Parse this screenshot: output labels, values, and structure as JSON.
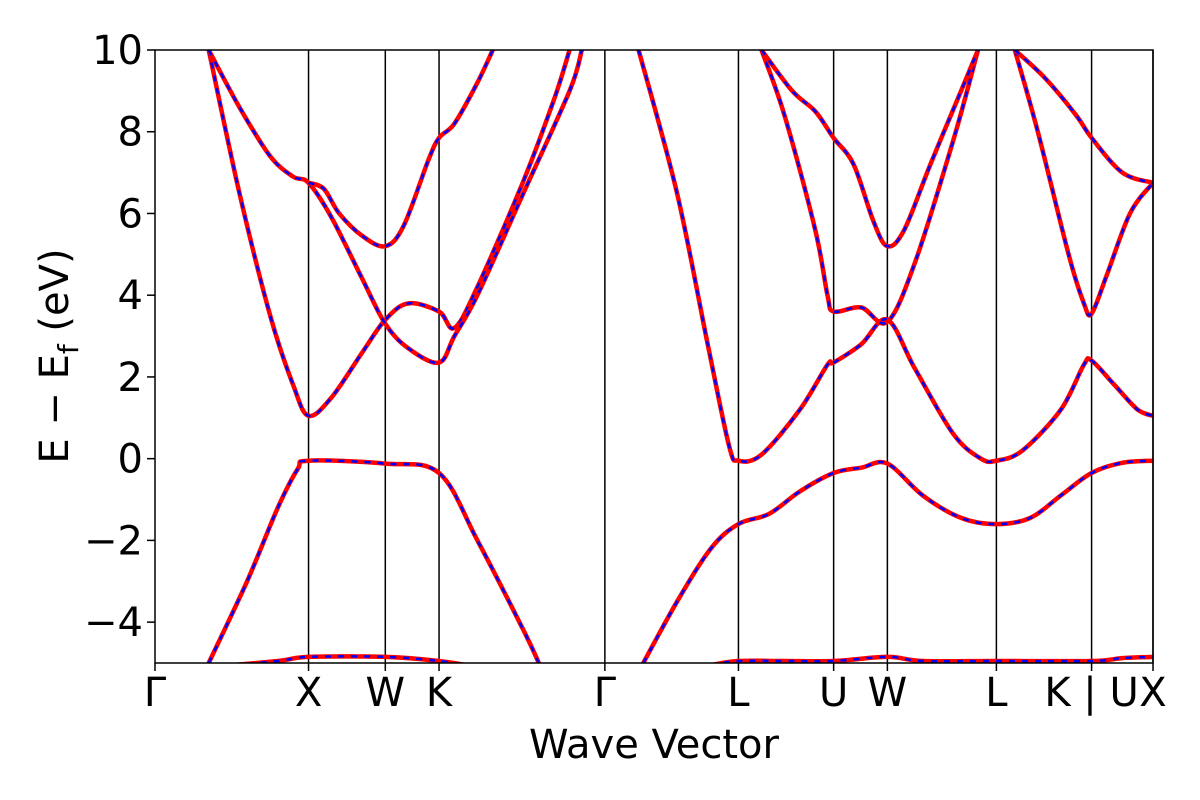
{
  "chart_data": {
    "type": "line",
    "xlabel": "Wave Vector",
    "ylabel": "E − E_f (eV)",
    "ylabel_parts": {
      "main": "E − E",
      "sub": "f",
      "unit": " (eV)"
    },
    "ylim": [
      -5,
      10
    ],
    "y_ticks": [
      -4,
      -2,
      0,
      2,
      4,
      6,
      8,
      10
    ],
    "y_tick_labels": [
      "−4",
      "−2",
      "0",
      "2",
      "4",
      "6",
      "8",
      "10"
    ],
    "x_range": [
      0,
      6.5
    ],
    "kpoints": [
      {
        "label": "Γ",
        "x": 0.0
      },
      {
        "label": "X",
        "x": 1.0
      },
      {
        "label": "W",
        "x": 1.5
      },
      {
        "label": "K",
        "x": 1.85
      },
      {
        "label": "Γ",
        "x": 2.93
      },
      {
        "label": "L",
        "x": 3.8
      },
      {
        "label": "U",
        "x": 4.42
      },
      {
        "label": "W",
        "x": 4.77
      },
      {
        "label": "L",
        "x": 5.48
      },
      {
        "label": "K | U",
        "x": 6.1
      },
      {
        "label": "X",
        "x": 6.5
      }
    ],
    "vlines": [
      1.0,
      1.5,
      1.85,
      2.93,
      3.8,
      4.42,
      4.77,
      5.48,
      6.1,
      6.5
    ],
    "grid": false,
    "series_styles": [
      {
        "role": "solid",
        "color": "#ff0000"
      },
      {
        "role": "dashed",
        "color": "#0000ff"
      }
    ],
    "bands": [
      {
        "points": [
          [
            0.35,
            -5.0
          ],
          [
            0.6,
            -3.0
          ],
          [
            0.8,
            -1.2
          ],
          [
            0.93,
            -0.25
          ],
          [
            1.0,
            -0.05
          ],
          [
            1.5,
            -0.12
          ],
          [
            1.85,
            -0.35
          ],
          [
            2.1,
            -2.0
          ],
          [
            2.4,
            -4.2
          ],
          [
            2.5,
            -5.0
          ]
        ]
      },
      {
        "points": [
          [
            0.35,
            10.0
          ],
          [
            0.55,
            6.5
          ],
          [
            0.75,
            3.5
          ],
          [
            0.9,
            1.8
          ],
          [
            1.0,
            1.05
          ],
          [
            1.15,
            1.5
          ],
          [
            1.35,
            2.6
          ],
          [
            1.5,
            3.4
          ],
          [
            1.65,
            3.8
          ],
          [
            1.85,
            3.6
          ],
          [
            1.95,
            3.2
          ],
          [
            2.1,
            4.2
          ],
          [
            2.4,
            6.8
          ],
          [
            2.6,
            8.8
          ],
          [
            2.7,
            10.0
          ]
        ]
      },
      {
        "points": [
          [
            0.35,
            10.0
          ],
          [
            0.55,
            8.6
          ],
          [
            0.75,
            7.4
          ],
          [
            0.9,
            6.9
          ],
          [
            1.0,
            6.75
          ],
          [
            1.15,
            5.9
          ],
          [
            1.35,
            4.4
          ],
          [
            1.5,
            3.3
          ],
          [
            1.65,
            2.7
          ],
          [
            1.85,
            2.35
          ],
          [
            1.95,
            3.0
          ],
          [
            2.1,
            4.0
          ],
          [
            2.4,
            6.5
          ],
          [
            2.7,
            9.0
          ],
          [
            2.78,
            10.0
          ]
        ]
      },
      {
        "points": [
          [
            1.0,
            6.75
          ],
          [
            1.1,
            6.6
          ],
          [
            1.2,
            6.0
          ],
          [
            1.35,
            5.45
          ],
          [
            1.5,
            5.2
          ],
          [
            1.62,
            5.7
          ],
          [
            1.78,
            7.3
          ],
          [
            1.85,
            7.85
          ],
          [
            1.95,
            8.2
          ],
          [
            2.1,
            9.2
          ],
          [
            2.2,
            10.0
          ]
        ]
      },
      {
        "points": [
          [
            3.18,
            -5.0
          ],
          [
            3.4,
            -3.5
          ],
          [
            3.62,
            -2.2
          ],
          [
            3.8,
            -1.6
          ],
          [
            4.0,
            -1.35
          ],
          [
            4.2,
            -0.8
          ],
          [
            4.42,
            -0.35
          ],
          [
            4.6,
            -0.22
          ],
          [
            4.77,
            -0.12
          ],
          [
            5.0,
            -0.9
          ],
          [
            5.25,
            -1.45
          ],
          [
            5.48,
            -1.6
          ],
          [
            5.7,
            -1.45
          ],
          [
            5.9,
            -0.9
          ],
          [
            6.1,
            -0.35
          ],
          [
            6.3,
            -0.1
          ],
          [
            6.5,
            -0.05
          ]
        ]
      },
      {
        "points": [
          [
            3.15,
            10.0
          ],
          [
            3.4,
            6.5
          ],
          [
            3.6,
            2.8
          ],
          [
            3.74,
            0.3
          ],
          [
            3.8,
            -0.05
          ],
          [
            3.95,
            0.1
          ],
          [
            4.2,
            1.2
          ],
          [
            4.38,
            2.3
          ],
          [
            4.42,
            2.35
          ],
          [
            4.6,
            2.8
          ],
          [
            4.77,
            3.4
          ],
          [
            4.95,
            2.2
          ],
          [
            5.2,
            0.6
          ],
          [
            5.38,
            0.0
          ],
          [
            5.48,
            -0.05
          ],
          [
            5.65,
            0.2
          ],
          [
            5.9,
            1.2
          ],
          [
            6.05,
            2.3
          ],
          [
            6.1,
            2.4
          ],
          [
            6.25,
            1.8
          ],
          [
            6.4,
            1.2
          ],
          [
            6.5,
            1.05
          ]
        ]
      },
      {
        "points": [
          [
            3.95,
            10.0
          ],
          [
            4.1,
            8.4
          ],
          [
            4.3,
            5.6
          ],
          [
            4.38,
            4.0
          ],
          [
            4.42,
            3.6
          ],
          [
            4.6,
            3.7
          ],
          [
            4.77,
            3.35
          ],
          [
            4.95,
            4.8
          ],
          [
            5.2,
            7.8
          ],
          [
            5.36,
            10.0
          ]
        ]
      },
      {
        "points": [
          [
            3.95,
            10.0
          ],
          [
            4.15,
            9.0
          ],
          [
            4.3,
            8.5
          ],
          [
            4.42,
            7.85
          ],
          [
            4.55,
            7.2
          ],
          [
            4.68,
            5.8
          ],
          [
            4.77,
            5.2
          ],
          [
            4.88,
            5.6
          ],
          [
            5.05,
            7.2
          ],
          [
            5.25,
            9.0
          ],
          [
            5.36,
            10.0
          ]
        ]
      },
      {
        "points": [
          [
            5.6,
            10.0
          ],
          [
            5.75,
            8.0
          ],
          [
            5.95,
            5.0
          ],
          [
            6.05,
            3.8
          ],
          [
            6.1,
            3.55
          ],
          [
            6.2,
            4.5
          ],
          [
            6.35,
            6.0
          ],
          [
            6.5,
            6.75
          ]
        ]
      },
      {
        "points": [
          [
            5.6,
            10.0
          ],
          [
            5.8,
            9.3
          ],
          [
            6.0,
            8.4
          ],
          [
            6.1,
            7.85
          ],
          [
            6.3,
            7.0
          ],
          [
            6.5,
            6.75
          ]
        ]
      },
      {
        "points": [
          [
            0.35,
            -5.1
          ],
          [
            0.8,
            -4.95
          ],
          [
            1.0,
            -4.85
          ],
          [
            1.5,
            -4.85
          ],
          [
            1.85,
            -4.95
          ],
          [
            2.1,
            -5.1
          ]
        ]
      },
      {
        "points": [
          [
            3.62,
            -5.05
          ],
          [
            3.8,
            -4.95
          ],
          [
            4.1,
            -4.95
          ],
          [
            4.42,
            -4.95
          ],
          [
            4.77,
            -4.85
          ],
          [
            5.0,
            -4.95
          ],
          [
            5.48,
            -4.95
          ],
          [
            6.1,
            -4.95
          ],
          [
            6.3,
            -4.88
          ],
          [
            6.5,
            -4.85
          ]
        ]
      }
    ]
  }
}
